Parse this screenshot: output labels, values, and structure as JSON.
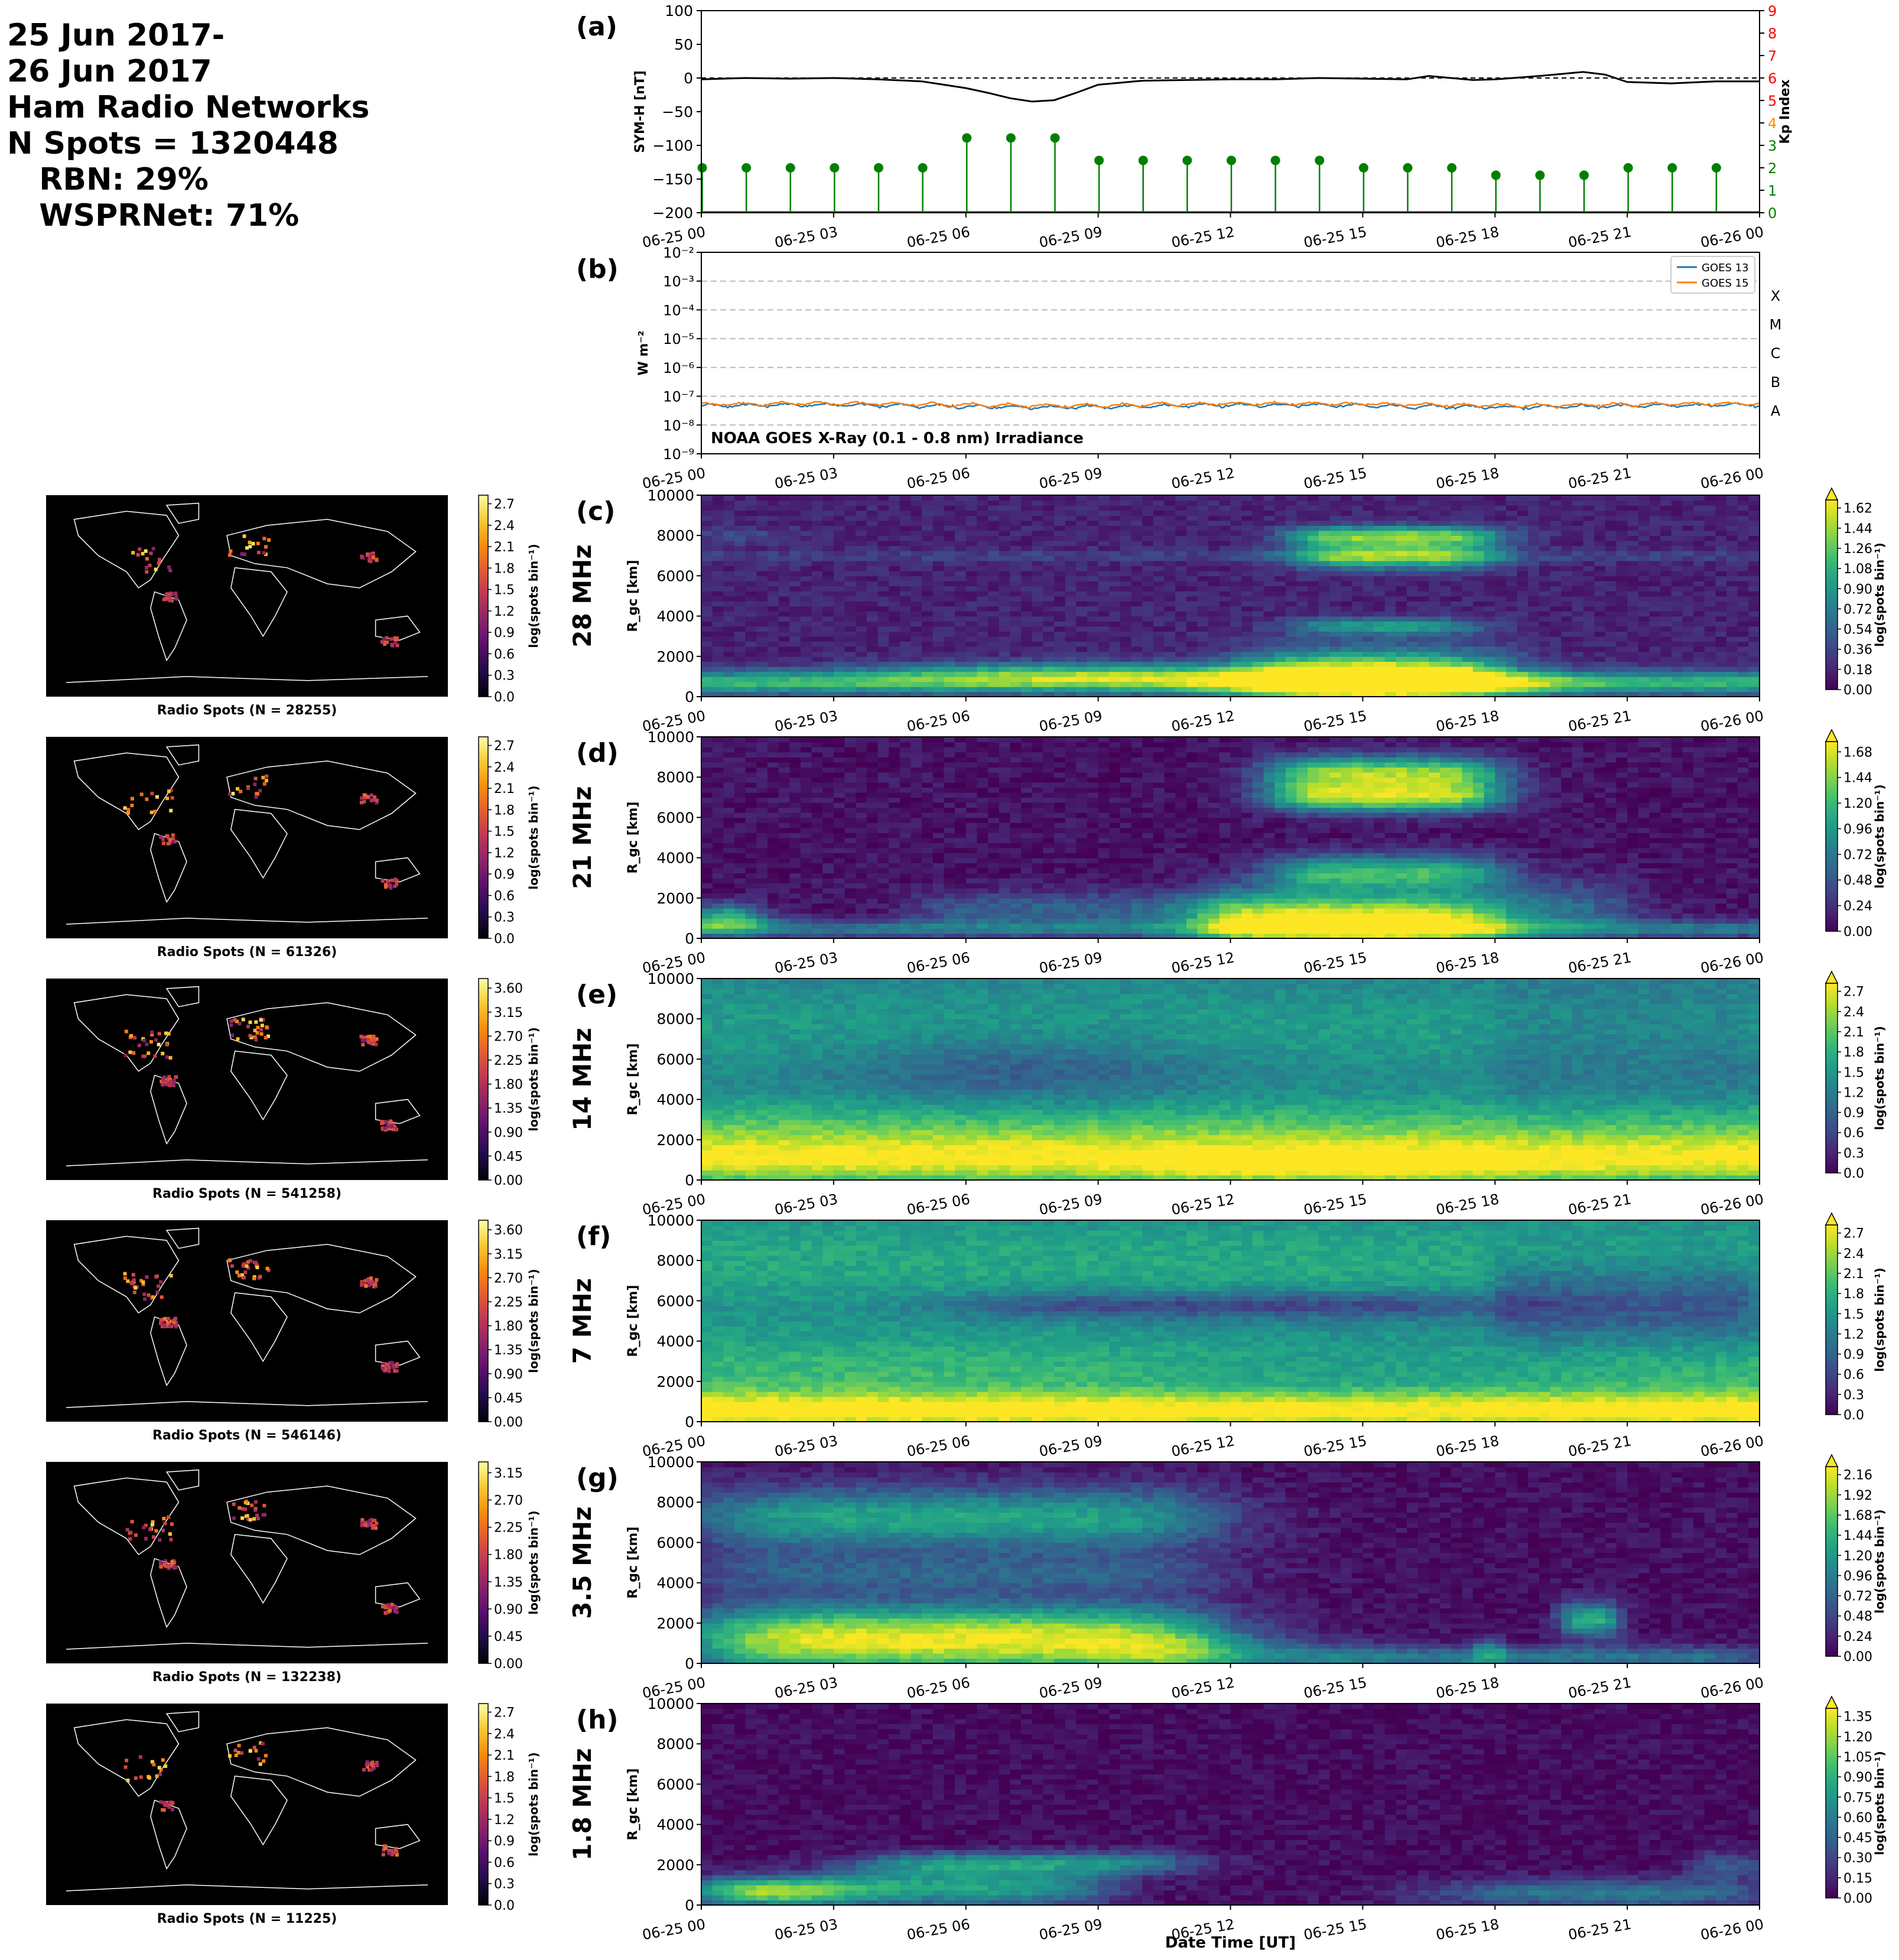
{
  "header": {
    "lines": [
      "25 Jun 2017-",
      "26 Jun 2017",
      "Ham Radio Networks",
      "N Spots = 1320448",
      "   RBN: 29%",
      "   WSPRNet: 71%"
    ]
  },
  "time_axis": {
    "ticks": [
      "06-25 00",
      "06-25 03",
      "06-25 06",
      "06-25 09",
      "06-25 12",
      "06-25 15",
      "06-25 18",
      "06-25 21",
      "06-26 00"
    ],
    "xlabel": "Date Time [UT]"
  },
  "chart_data": [
    {
      "id": "a",
      "panel_label": "(a)",
      "type": "line",
      "ylabel": "SYM-H [nT]",
      "ylim": [
        -200,
        100
      ],
      "yticks": [
        100,
        50,
        0,
        -50,
        -100,
        -150,
        -200
      ],
      "reference_line": 0,
      "series": [
        {
          "role": "SYM-H",
          "color": "#000000",
          "x_hours": [
            0,
            1,
            2,
            3,
            4,
            5,
            5.5,
            6,
            6.5,
            7,
            7.5,
            8,
            8.5,
            9,
            10,
            11,
            12,
            13,
            14,
            15,
            16,
            16.5,
            17,
            17.5,
            18,
            19,
            19.5,
            20,
            20.5,
            21,
            22,
            23,
            24
          ],
          "values": [
            -2,
            0,
            -1,
            0,
            -2,
            -5,
            -10,
            -15,
            -22,
            -30,
            -35,
            -33,
            -22,
            -10,
            -4,
            -3,
            -2,
            -2,
            0,
            -1,
            -2,
            3,
            0,
            -3,
            -2,
            3,
            6,
            9,
            5,
            -6,
            -8,
            -5,
            -5
          ]
        }
      ],
      "y2": {
        "label": "Kp Index",
        "ylim": [
          0,
          9
        ],
        "ticks": [
          0,
          1,
          2,
          3,
          4,
          5,
          6,
          7,
          8,
          9
        ],
        "tick_colors": [
          "#008000",
          "#008000",
          "#008000",
          "#008000",
          "#ff8c00",
          "#ff0000",
          "#ff0000",
          "#ff0000",
          "#ff0000",
          "#ff0000"
        ]
      },
      "kp_stems": {
        "color": "#008000",
        "x_hours": [
          0,
          1,
          2,
          3,
          4,
          5,
          6,
          7,
          8,
          9,
          10,
          11,
          12,
          13,
          14,
          15,
          16,
          17,
          18,
          19,
          20,
          21,
          22,
          23
        ],
        "values": [
          2,
          2,
          2,
          2,
          2,
          2,
          3.33,
          3.33,
          3.33,
          2.33,
          2.33,
          2.33,
          2.33,
          2.33,
          2.33,
          2,
          2,
          2,
          1.67,
          1.67,
          1.67,
          2,
          2,
          2
        ]
      }
    },
    {
      "id": "b",
      "panel_label": "(b)",
      "type": "line",
      "ylabel": "W m⁻²",
      "yscale": "log",
      "ylim": [
        1e-09,
        0.01
      ],
      "ytick_labels": [
        "10⁻⁹",
        "10⁻⁸",
        "10⁻⁷",
        "10⁻⁶",
        "10⁻⁵",
        "10⁻⁴",
        "10⁻³",
        "10⁻²"
      ],
      "flare_classes": [
        "A",
        "B",
        "C",
        "M",
        "X"
      ],
      "annotation": "NOAA GOES X-Ray (0.1 - 0.8 nm) Irradiance",
      "legend_position": "top-right",
      "series": [
        {
          "name": "GOES 13",
          "color": "#1f77b4",
          "level": 4.6e-08
        },
        {
          "name": "GOES 15",
          "color": "#ff7f0e",
          "level": 5.2e-08
        }
      ]
    },
    {
      "id": "c",
      "panel_label": "(c)",
      "band": "28 MHz",
      "type": "heatmap",
      "ylabel": "R_gc [km]",
      "ylim": [
        0,
        10000
      ],
      "yticks": [
        0,
        2000,
        4000,
        6000,
        8000,
        10000
      ],
      "map_caption": "Radio Spots (N = 28255)",
      "map_cbar_ticks": [
        "0.0",
        "0.3",
        "0.6",
        "0.9",
        "1.2",
        "1.5",
        "1.8",
        "2.1",
        "2.4",
        "2.7"
      ],
      "cbar_ticks": [
        "0.00",
        "0.18",
        "0.36",
        "0.54",
        "0.72",
        "0.90",
        "1.08",
        "1.26",
        "1.44",
        "1.62"
      ],
      "cbar_label": "log(spots bin⁻¹)"
    },
    {
      "id": "d",
      "panel_label": "(d)",
      "band": "21 MHz",
      "type": "heatmap",
      "ylabel": "R_gc [km]",
      "ylim": [
        0,
        10000
      ],
      "yticks": [
        0,
        2000,
        4000,
        6000,
        8000,
        10000
      ],
      "map_caption": "Radio Spots (N = 61326)",
      "map_cbar_ticks": [
        "0.0",
        "0.3",
        "0.6",
        "0.9",
        "1.2",
        "1.5",
        "1.8",
        "2.1",
        "2.4",
        "2.7"
      ],
      "cbar_ticks": [
        "0.00",
        "0.24",
        "0.48",
        "0.72",
        "0.96",
        "1.20",
        "1.44",
        "1.68"
      ],
      "cbar_label": "log(spots bin⁻¹)"
    },
    {
      "id": "e",
      "panel_label": "(e)",
      "band": "14 MHz",
      "type": "heatmap",
      "ylabel": "R_gc [km]",
      "ylim": [
        0,
        10000
      ],
      "yticks": [
        0,
        2000,
        4000,
        6000,
        8000,
        10000
      ],
      "map_caption": "Radio Spots (N = 541258)",
      "map_cbar_ticks": [
        "0.00",
        "0.45",
        "0.90",
        "1.35",
        "1.80",
        "2.25",
        "2.70",
        "3.15",
        "3.60"
      ],
      "cbar_ticks": [
        "0.0",
        "0.3",
        "0.6",
        "0.9",
        "1.2",
        "1.5",
        "1.8",
        "2.1",
        "2.4",
        "2.7"
      ],
      "cbar_label": "log(spots bin⁻¹)"
    },
    {
      "id": "f",
      "panel_label": "(f)",
      "band": "7 MHz",
      "type": "heatmap",
      "ylabel": "R_gc [km]",
      "ylim": [
        0,
        10000
      ],
      "yticks": [
        0,
        2000,
        4000,
        6000,
        8000,
        10000
      ],
      "map_caption": "Radio Spots (N = 546146)",
      "map_cbar_ticks": [
        "0.00",
        "0.45",
        "0.90",
        "1.35",
        "1.80",
        "2.25",
        "2.70",
        "3.15",
        "3.60"
      ],
      "cbar_ticks": [
        "0.0",
        "0.3",
        "0.6",
        "0.9",
        "1.2",
        "1.5",
        "1.8",
        "2.1",
        "2.4",
        "2.7"
      ],
      "cbar_label": "log(spots bin⁻¹)"
    },
    {
      "id": "g",
      "panel_label": "(g)",
      "band": "3.5 MHz",
      "type": "heatmap",
      "ylabel": "R_gc [km]",
      "ylim": [
        0,
        10000
      ],
      "yticks": [
        0,
        2000,
        4000,
        6000,
        8000,
        10000
      ],
      "map_caption": "Radio Spots (N = 132238)",
      "map_cbar_ticks": [
        "0.00",
        "0.45",
        "0.90",
        "1.35",
        "1.80",
        "2.25",
        "2.70",
        "3.15"
      ],
      "cbar_ticks": [
        "0.00",
        "0.24",
        "0.48",
        "0.72",
        "0.96",
        "1.20",
        "1.44",
        "1.68",
        "1.92",
        "2.16"
      ],
      "cbar_label": "log(spots bin⁻¹)"
    },
    {
      "id": "h",
      "panel_label": "(h)",
      "band": "1.8 MHz",
      "type": "heatmap",
      "ylabel": "R_gc [km]",
      "ylim": [
        0,
        10000
      ],
      "yticks": [
        0,
        2000,
        4000,
        6000,
        8000,
        10000
      ],
      "map_caption": "Radio Spots (N = 11225)",
      "map_cbar_ticks": [
        "0.0",
        "0.3",
        "0.6",
        "0.9",
        "1.2",
        "1.5",
        "1.8",
        "2.1",
        "2.4",
        "2.7"
      ],
      "cbar_ticks": [
        "0.00",
        "0.15",
        "0.30",
        "0.45",
        "0.60",
        "0.75",
        "0.90",
        "1.05",
        "1.20",
        "1.35"
      ],
      "cbar_label": "log(spots bin⁻¹)"
    }
  ]
}
